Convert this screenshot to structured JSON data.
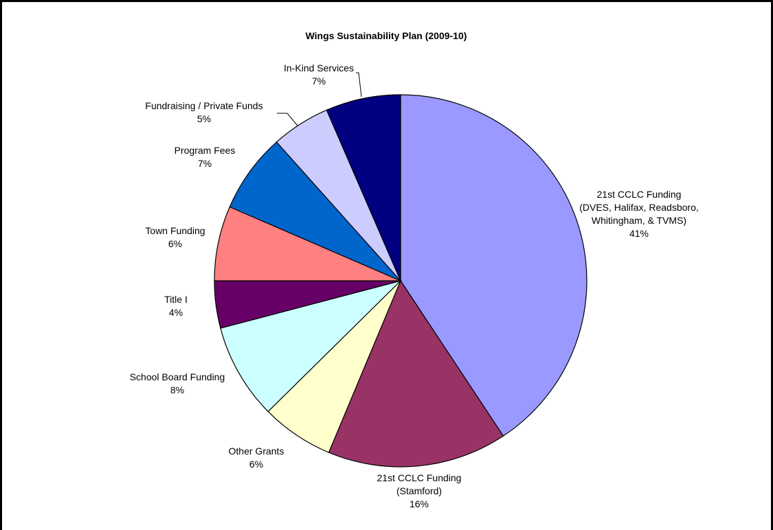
{
  "chart_data": {
    "type": "pie",
    "title": "Wings Sustainability Plan (2009-10)",
    "slices": [
      {
        "label": [
          "21st CCLC Funding",
          "(DVES, Halifax, Readsboro,",
          "Whitingham, & TVMS)"
        ],
        "percent_label": "41%",
        "value": 40.7,
        "color": "#9999ff"
      },
      {
        "label": [
          "21st CCLC Funding",
          "(Stamford)"
        ],
        "percent_label": "16%",
        "value": 15.6,
        "color": "#993366"
      },
      {
        "label": [
          "Other Grants"
        ],
        "percent_label": "6%",
        "value": 6.3,
        "color": "#ffffcc"
      },
      {
        "label": [
          "School Board Funding"
        ],
        "percent_label": "8%",
        "value": 8.3,
        "color": "#ccffff"
      },
      {
        "label": [
          "Title I"
        ],
        "percent_label": "4%",
        "value": 4.1,
        "color": "#660066"
      },
      {
        "label": [
          "Town Funding"
        ],
        "percent_label": "6%",
        "value": 6.5,
        "color": "#ff8080"
      },
      {
        "label": [
          "Program Fees"
        ],
        "percent_label": "7%",
        "value": 6.9,
        "color": "#0066cc"
      },
      {
        "label": [
          "Fundraising / Private Funds"
        ],
        "percent_label": "5%",
        "value": 5.1,
        "color": "#ccccff"
      },
      {
        "label": [
          "In-Kind Services"
        ],
        "percent_label": "7%",
        "value": 6.5,
        "color": "#000080"
      }
    ],
    "legend": "none"
  }
}
